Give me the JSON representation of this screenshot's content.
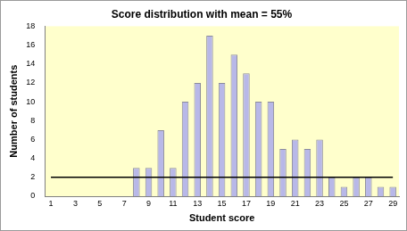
{
  "chart_data": {
    "type": "bar",
    "title": "Score distribution with mean = 55%",
    "x_label": "Student score",
    "y_label": "Number of students",
    "categories": [
      1,
      null,
      3,
      null,
      5,
      null,
      7,
      null,
      9,
      null,
      11,
      null,
      13,
      null,
      15,
      null,
      17,
      null,
      19,
      null,
      21,
      null,
      23,
      null,
      25,
      null,
      27,
      null,
      29
    ],
    "values": [
      0,
      0,
      0,
      0,
      0,
      0,
      0,
      3,
      3,
      7,
      3,
      10,
      12,
      17,
      12,
      15,
      13,
      10,
      10,
      5,
      6,
      5,
      6,
      2,
      1,
      2,
      2,
      1,
      1
    ],
    "threshold": 2,
    "color": "#b8b8e8",
    "ylim": [
      0,
      18
    ],
    "yticks": [
      0,
      2,
      4,
      6,
      8,
      10,
      12,
      14,
      16,
      18
    ],
    "grid": false
  }
}
